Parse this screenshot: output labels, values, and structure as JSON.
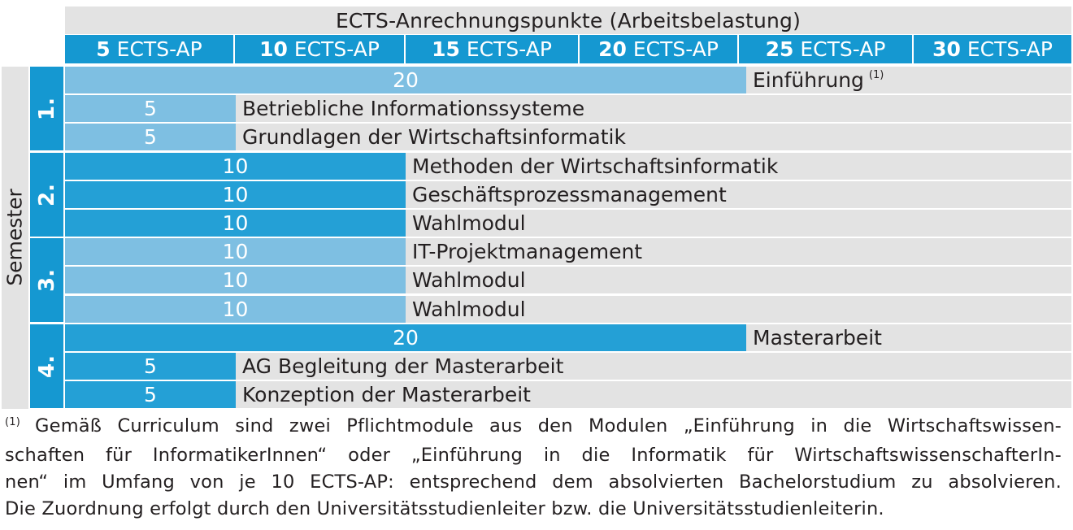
{
  "header": {
    "title": "ECTS-Anrechnungspunkte (Arbeitsbelastung)",
    "scale": [
      {
        "number": "5",
        "unit": "ECTS-AP"
      },
      {
        "number": "10",
        "unit": "ECTS-AP"
      },
      {
        "number": "15",
        "unit": "ECTS-AP"
      },
      {
        "number": "20",
        "unit": "ECTS-AP"
      },
      {
        "number": "25",
        "unit": "ECTS-AP"
      },
      {
        "number": "30",
        "unit": "ECTS-AP"
      }
    ]
  },
  "axis_label": "Semester",
  "semesters": [
    {
      "label": "1.",
      "color": "#7ebfe2"
    },
    {
      "label": "2.",
      "color": "#24a0d6"
    },
    {
      "label": "3.",
      "color": "#7ebfe2"
    },
    {
      "label": "4.",
      "color": "#24a0d6"
    }
  ],
  "modules": [
    {
      "ects": "20",
      "name": "Einführung",
      "footnote": "(1)"
    },
    {
      "ects": "5",
      "name": "Betriebliche Informationssysteme"
    },
    {
      "ects": "5",
      "name": "Grundlagen der Wirtschaftsinformatik"
    },
    {
      "ects": "10",
      "name": "Methoden der Wirtschaftsinformatik"
    },
    {
      "ects": "10",
      "name": "Geschäftsprozessmanagement"
    },
    {
      "ects": "10",
      "name": "Wahlmodul"
    },
    {
      "ects": "10",
      "name": "IT-Projektmanagement"
    },
    {
      "ects": "10",
      "name": "Wahlmodul"
    },
    {
      "ects": "10",
      "name": "Wahlmodul"
    },
    {
      "ects": "20",
      "name": "Masterarbeit"
    },
    {
      "ects": "5",
      "name": "AG Begleitung der Masterarbeit"
    },
    {
      "ects": "5",
      "name": "Konzeption der Masterarbeit"
    }
  ],
  "colors": {
    "header_blue": "#1598d1",
    "semester_number_blue": "#1598d1",
    "light_bar": "#7ebfe2",
    "dark_bar": "#24a0d6",
    "grey_background": "#e3e3e3"
  },
  "footnote": {
    "marker": "(1)",
    "lines": [
      "Gemäß Curriculum sind zwei Pflichtmodule aus den Modulen „Einführung in die Wirtschaftswissen-",
      "schaften für InformatikerInnen“ oder „Einführung in die Informatik für WirtschaftswissenschafterIn-",
      "nen“ im Umfang von je 10 ECTS-AP: entsprechend dem absolvierten Bachelorstudium zu absolvieren.",
      "Die Zuordnung erfolgt durch den Universitätsstudienleiter bzw. die Universitätsstudienleiterin."
    ]
  }
}
